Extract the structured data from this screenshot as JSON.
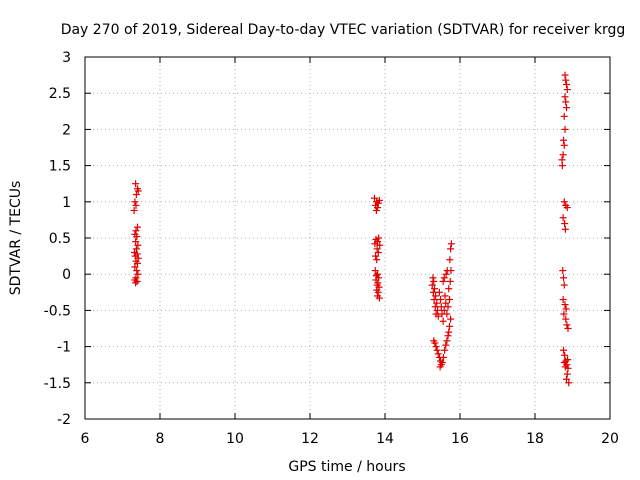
{
  "chart_data": {
    "type": "scatter",
    "title": "Day 270 of 2019, Sidereal Day-to-day VTEC variation (SDTVAR) for receiver krgg",
    "xlabel": "GPS time / hours",
    "ylabel": "SDTVAR / TECUs",
    "xlim": [
      6,
      20
    ],
    "ylim": [
      -2,
      3
    ],
    "xticks": [
      "6",
      "8",
      "10",
      "12",
      "14",
      "16",
      "18",
      "20"
    ],
    "yticks": [
      "-2",
      "-1.5",
      "-1",
      "-0.5",
      "0",
      "0.5",
      "1",
      "1.5",
      "2",
      "2.5",
      "3"
    ],
    "grid": true,
    "marker": "+",
    "color": "#e00000",
    "series": [
      {
        "name": "SDTVAR",
        "points": [
          [
            7.35,
            1.25
          ],
          [
            7.4,
            1.18
          ],
          [
            7.37,
            1.1
          ],
          [
            7.42,
            1.15
          ],
          [
            7.33,
            1.0
          ],
          [
            7.36,
            0.95
          ],
          [
            7.31,
            0.88
          ],
          [
            7.4,
            0.65
          ],
          [
            7.36,
            0.6
          ],
          [
            7.33,
            0.55
          ],
          [
            7.38,
            0.52
          ],
          [
            7.35,
            0.45
          ],
          [
            7.41,
            0.4
          ],
          [
            7.37,
            0.35
          ],
          [
            7.32,
            0.3
          ],
          [
            7.39,
            0.28
          ],
          [
            7.34,
            0.25
          ],
          [
            7.42,
            0.22
          ],
          [
            7.36,
            0.18
          ],
          [
            7.4,
            0.15
          ],
          [
            7.33,
            0.1
          ],
          [
            7.38,
            0.05
          ],
          [
            7.41,
            0.0
          ],
          [
            7.36,
            -0.05
          ],
          [
            7.33,
            -0.08
          ],
          [
            7.39,
            -0.1
          ],
          [
            7.35,
            -0.12
          ],
          [
            13.72,
            1.05
          ],
          [
            13.78,
            1.0
          ],
          [
            13.82,
            0.98
          ],
          [
            13.75,
            0.95
          ],
          [
            13.85,
            1.02
          ],
          [
            13.8,
            0.92
          ],
          [
            13.77,
            0.88
          ],
          [
            13.83,
            0.5
          ],
          [
            13.76,
            0.48
          ],
          [
            13.8,
            0.45
          ],
          [
            13.73,
            0.42
          ],
          [
            13.86,
            0.4
          ],
          [
            13.79,
            0.35
          ],
          [
            13.82,
            0.3
          ],
          [
            13.75,
            0.25
          ],
          [
            13.78,
            0.2
          ],
          [
            13.74,
            0.05
          ],
          [
            13.8,
            0.0
          ],
          [
            13.77,
            -0.02
          ],
          [
            13.83,
            -0.05
          ],
          [
            13.76,
            -0.08
          ],
          [
            13.81,
            -0.12
          ],
          [
            13.79,
            -0.15
          ],
          [
            13.84,
            -0.18
          ],
          [
            13.78,
            -0.22
          ],
          [
            13.82,
            -0.25
          ],
          [
            13.8,
            -0.3
          ],
          [
            13.85,
            -0.33
          ],
          [
            15.28,
            -0.05
          ],
          [
            15.3,
            -0.1
          ],
          [
            15.26,
            -0.15
          ],
          [
            15.32,
            -0.2
          ],
          [
            15.29,
            -0.25
          ],
          [
            15.35,
            -0.3
          ],
          [
            15.31,
            -0.35
          ],
          [
            15.38,
            -0.4
          ],
          [
            15.34,
            -0.45
          ],
          [
            15.4,
            -0.5
          ],
          [
            15.36,
            -0.55
          ],
          [
            15.42,
            -0.58
          ],
          [
            15.45,
            -0.25
          ],
          [
            15.48,
            -0.35
          ],
          [
            15.5,
            -0.45
          ],
          [
            15.52,
            -0.55
          ],
          [
            15.55,
            -0.65
          ],
          [
            15.58,
            -0.5
          ],
          [
            15.6,
            -0.3
          ],
          [
            15.62,
            -0.4
          ],
          [
            15.65,
            -0.55
          ],
          [
            15.68,
            -0.45
          ],
          [
            15.7,
            -0.2
          ],
          [
            15.72,
            -0.35
          ],
          [
            15.74,
            -0.1
          ],
          [
            15.76,
            0.05
          ],
          [
            15.73,
            0.2
          ],
          [
            15.75,
            0.35
          ],
          [
            15.77,
            0.42
          ],
          [
            15.63,
            0.0
          ],
          [
            15.66,
            0.05
          ],
          [
            15.58,
            -0.05
          ],
          [
            15.55,
            -0.1
          ],
          [
            15.3,
            -0.92
          ],
          [
            15.33,
            -0.95
          ],
          [
            15.36,
            -1.0
          ],
          [
            15.39,
            -1.05
          ],
          [
            15.42,
            -1.1
          ],
          [
            15.45,
            -1.15
          ],
          [
            15.48,
            -1.2
          ],
          [
            15.5,
            -1.25
          ],
          [
            15.47,
            -1.28
          ],
          [
            15.53,
            -1.22
          ],
          [
            15.56,
            -1.15
          ],
          [
            15.59,
            -1.05
          ],
          [
            15.62,
            -0.98
          ],
          [
            15.65,
            -0.92
          ],
          [
            15.7,
            -0.8
          ],
          [
            15.72,
            -0.72
          ],
          [
            15.75,
            -0.62
          ],
          [
            15.68,
            -0.85
          ],
          [
            18.8,
            2.75
          ],
          [
            18.82,
            2.68
          ],
          [
            18.84,
            2.62
          ],
          [
            18.86,
            2.55
          ],
          [
            18.8,
            2.45
          ],
          [
            18.82,
            2.38
          ],
          [
            18.84,
            2.3
          ],
          [
            18.78,
            2.18
          ],
          [
            18.8,
            2.0
          ],
          [
            18.76,
            1.85
          ],
          [
            18.78,
            1.78
          ],
          [
            18.75,
            1.65
          ],
          [
            18.72,
            1.58
          ],
          [
            18.73,
            1.5
          ],
          [
            18.78,
            1.0
          ],
          [
            18.82,
            0.95
          ],
          [
            18.86,
            0.92
          ],
          [
            18.75,
            0.78
          ],
          [
            18.79,
            0.7
          ],
          [
            18.81,
            0.62
          ],
          [
            18.74,
            0.05
          ],
          [
            18.76,
            -0.05
          ],
          [
            18.78,
            -0.15
          ],
          [
            18.75,
            -0.35
          ],
          [
            18.8,
            -0.42
          ],
          [
            18.83,
            -0.48
          ],
          [
            18.77,
            -0.55
          ],
          [
            18.82,
            -0.62
          ],
          [
            18.85,
            -0.7
          ],
          [
            18.88,
            -0.75
          ],
          [
            18.76,
            -1.05
          ],
          [
            18.79,
            -1.12
          ],
          [
            18.82,
            -1.2
          ],
          [
            18.85,
            -1.25
          ],
          [
            18.88,
            -1.3
          ],
          [
            18.86,
            -1.38
          ],
          [
            18.84,
            -1.45
          ],
          [
            18.9,
            -1.5
          ],
          [
            18.78,
            -1.22
          ],
          [
            18.81,
            -1.28
          ],
          [
            18.87,
            -1.18
          ]
        ]
      }
    ]
  }
}
